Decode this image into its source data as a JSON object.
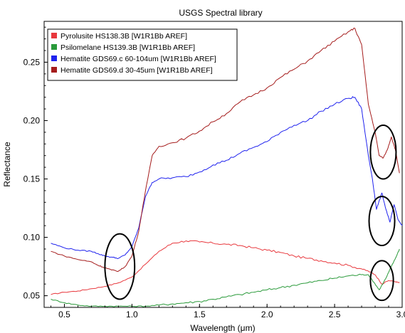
{
  "chart_data": {
    "type": "line",
    "title": "USGS Spectral library",
    "xlabel": "Wavelength (μm)",
    "ylabel": "Reflectance",
    "xlim": [
      0.35,
      3.0
    ],
    "ylim": [
      0.04,
      0.285
    ],
    "x_ticks": [
      0.5,
      1.0,
      1.5,
      2.0,
      2.5,
      3.0
    ],
    "x_tick_labels": [
      "0.5",
      "1.0",
      "1.5",
      "2.0",
      "2.5",
      "3.0"
    ],
    "y_ticks": [
      0.05,
      0.1,
      0.15,
      0.2,
      0.25
    ],
    "y_tick_labels": [
      "0.05",
      "0.10",
      "0.15",
      "0.20",
      "0.25"
    ],
    "grid": false,
    "legend_position": "top-left",
    "series": [
      {
        "name": "Pyrolusite HS138.3B [W1R1Bb AREF]",
        "color": "#e8383d",
        "points": [
          [
            0.4,
            0.051
          ],
          [
            0.5,
            0.053
          ],
          [
            0.6,
            0.054
          ],
          [
            0.7,
            0.056
          ],
          [
            0.8,
            0.058
          ],
          [
            0.9,
            0.061
          ],
          [
            1.0,
            0.066
          ],
          [
            1.1,
            0.077
          ],
          [
            1.2,
            0.088
          ],
          [
            1.3,
            0.095
          ],
          [
            1.4,
            0.097
          ],
          [
            1.5,
            0.096
          ],
          [
            1.6,
            0.095
          ],
          [
            1.7,
            0.094
          ],
          [
            1.8,
            0.093
          ],
          [
            1.9,
            0.091
          ],
          [
            2.0,
            0.089
          ],
          [
            2.1,
            0.087
          ],
          [
            2.2,
            0.084
          ],
          [
            2.3,
            0.082
          ],
          [
            2.4,
            0.08
          ],
          [
            2.5,
            0.078
          ],
          [
            2.6,
            0.076
          ],
          [
            2.7,
            0.073
          ],
          [
            2.75,
            0.071
          ],
          [
            2.8,
            0.068
          ],
          [
            2.85,
            0.06
          ],
          [
            2.9,
            0.063
          ],
          [
            2.95,
            0.062
          ],
          [
            2.98,
            0.061
          ]
        ]
      },
      {
        "name": "Psilomelane HS139.3B [W1R1Bb AREF]",
        "color": "#2a9a3a",
        "points": [
          [
            0.4,
            0.047
          ],
          [
            0.5,
            0.044
          ],
          [
            0.6,
            0.042
          ],
          [
            0.7,
            0.041
          ],
          [
            0.8,
            0.041
          ],
          [
            0.9,
            0.041
          ],
          [
            1.0,
            0.041
          ],
          [
            1.1,
            0.041
          ],
          [
            1.2,
            0.042
          ],
          [
            1.3,
            0.043
          ],
          [
            1.4,
            0.044
          ],
          [
            1.5,
            0.045
          ],
          [
            1.6,
            0.047
          ],
          [
            1.7,
            0.049
          ],
          [
            1.8,
            0.051
          ],
          [
            1.9,
            0.053
          ],
          [
            2.0,
            0.055
          ],
          [
            2.1,
            0.057
          ],
          [
            2.2,
            0.059
          ],
          [
            2.3,
            0.061
          ],
          [
            2.4,
            0.063
          ],
          [
            2.5,
            0.065
          ],
          [
            2.6,
            0.067
          ],
          [
            2.7,
            0.068
          ],
          [
            2.75,
            0.068
          ],
          [
            2.8,
            0.06
          ],
          [
            2.83,
            0.055
          ],
          [
            2.88,
            0.065
          ],
          [
            2.92,
            0.075
          ],
          [
            2.95,
            0.082
          ],
          [
            2.98,
            0.09
          ]
        ]
      },
      {
        "name": "Hematite GDS69.c 60-104um [W1R1Bb AREF]",
        "color": "#1f22ee",
        "points": [
          [
            0.4,
            0.095
          ],
          [
            0.5,
            0.091
          ],
          [
            0.6,
            0.089
          ],
          [
            0.7,
            0.088
          ],
          [
            0.75,
            0.086
          ],
          [
            0.8,
            0.084
          ],
          [
            0.85,
            0.083
          ],
          [
            0.9,
            0.082
          ],
          [
            0.95,
            0.085
          ],
          [
            1.0,
            0.092
          ],
          [
            1.05,
            0.108
          ],
          [
            1.1,
            0.135
          ],
          [
            1.15,
            0.147
          ],
          [
            1.2,
            0.15
          ],
          [
            1.3,
            0.151
          ],
          [
            1.4,
            0.152
          ],
          [
            1.5,
            0.156
          ],
          [
            1.6,
            0.162
          ],
          [
            1.7,
            0.166
          ],
          [
            1.8,
            0.172
          ],
          [
            1.9,
            0.177
          ],
          [
            2.0,
            0.182
          ],
          [
            2.1,
            0.19
          ],
          [
            2.2,
            0.196
          ],
          [
            2.3,
            0.2
          ],
          [
            2.4,
            0.208
          ],
          [
            2.5,
            0.214
          ],
          [
            2.6,
            0.219
          ],
          [
            2.65,
            0.22
          ],
          [
            2.7,
            0.21
          ],
          [
            2.75,
            0.17
          ],
          [
            2.78,
            0.15
          ],
          [
            2.81,
            0.124
          ],
          [
            2.85,
            0.138
          ],
          [
            2.88,
            0.124
          ],
          [
            2.91,
            0.113
          ],
          [
            2.94,
            0.128
          ],
          [
            2.97,
            0.115
          ],
          [
            3.0,
            0.11
          ]
        ]
      },
      {
        "name": "Hematite GDS69.d 30-45um [W1R1Bb AREF]",
        "color": "#a51c1c",
        "points": [
          [
            0.4,
            0.088
          ],
          [
            0.5,
            0.084
          ],
          [
            0.6,
            0.081
          ],
          [
            0.7,
            0.079
          ],
          [
            0.75,
            0.076
          ],
          [
            0.8,
            0.074
          ],
          [
            0.85,
            0.072
          ],
          [
            0.9,
            0.071
          ],
          [
            0.95,
            0.075
          ],
          [
            1.0,
            0.084
          ],
          [
            1.05,
            0.105
          ],
          [
            1.1,
            0.14
          ],
          [
            1.15,
            0.17
          ],
          [
            1.2,
            0.178
          ],
          [
            1.3,
            0.181
          ],
          [
            1.4,
            0.185
          ],
          [
            1.5,
            0.191
          ],
          [
            1.6,
            0.199
          ],
          [
            1.7,
            0.206
          ],
          [
            1.8,
            0.216
          ],
          [
            1.9,
            0.222
          ],
          [
            2.0,
            0.228
          ],
          [
            2.1,
            0.237
          ],
          [
            2.2,
            0.244
          ],
          [
            2.3,
            0.251
          ],
          [
            2.4,
            0.26
          ],
          [
            2.5,
            0.268
          ],
          [
            2.6,
            0.276
          ],
          [
            2.65,
            0.279
          ],
          [
            2.7,
            0.265
          ],
          [
            2.75,
            0.214
          ],
          [
            2.8,
            0.19
          ],
          [
            2.83,
            0.17
          ],
          [
            2.86,
            0.168
          ],
          [
            2.89,
            0.175
          ],
          [
            2.92,
            0.186
          ],
          [
            2.95,
            0.175
          ],
          [
            2.98,
            0.155
          ]
        ]
      }
    ],
    "annotations": [
      {
        "type": "ellipse",
        "cx": 0.91,
        "cy": 0.075,
        "rx": 0.11,
        "ry": 0.028
      },
      {
        "type": "ellipse",
        "cx": 2.86,
        "cy": 0.173,
        "rx": 0.095,
        "ry": 0.023
      },
      {
        "type": "ellipse",
        "cx": 2.85,
        "cy": 0.114,
        "rx": 0.095,
        "ry": 0.021
      },
      {
        "type": "ellipse",
        "cx": 2.85,
        "cy": 0.063,
        "rx": 0.085,
        "ry": 0.017
      }
    ]
  }
}
